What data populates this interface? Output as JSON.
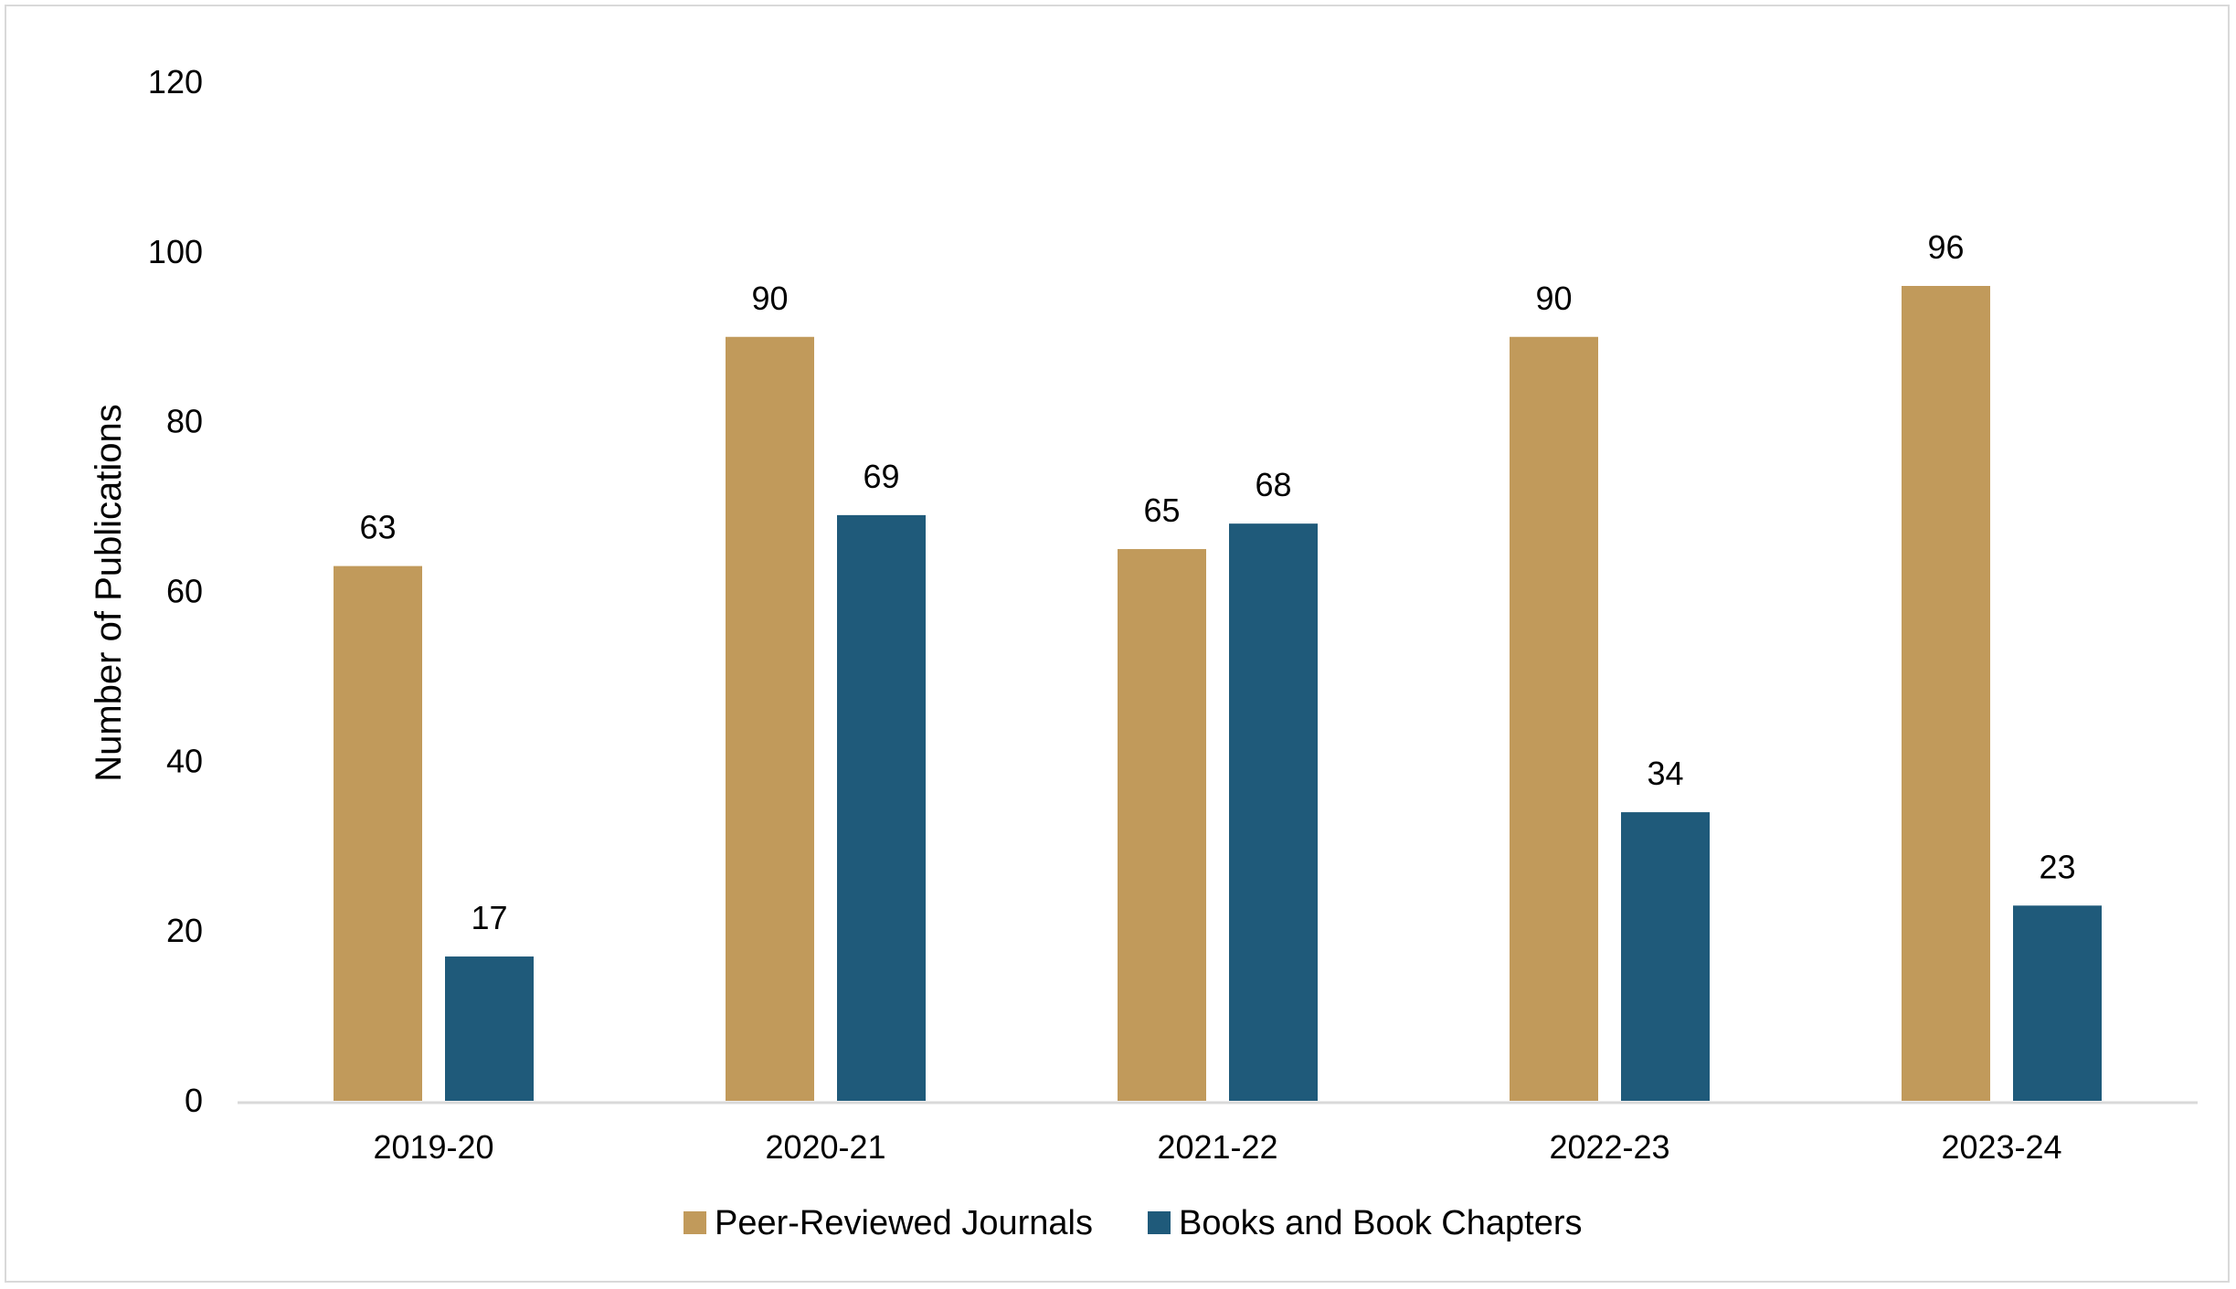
{
  "chart_data": {
    "type": "bar",
    "title": "",
    "xlabel": "",
    "ylabel": "Number of Publications",
    "ylim": [
      0,
      120
    ],
    "yticks": [
      0,
      20,
      40,
      60,
      80,
      100,
      120
    ],
    "grid": false,
    "legend_position": "bottom",
    "categories": [
      "2019-20",
      "2020-21",
      "2021-22",
      "2022-23",
      "2023-24"
    ],
    "series": [
      {
        "name": "Peer-Reviewed Journals",
        "color": "#c19a5b",
        "values": [
          63,
          90,
          65,
          90,
          96
        ]
      },
      {
        "name": "Books and Book Chapters",
        "color": "#1f5a7a",
        "values": [
          17,
          69,
          68,
          34,
          23
        ]
      }
    ]
  }
}
